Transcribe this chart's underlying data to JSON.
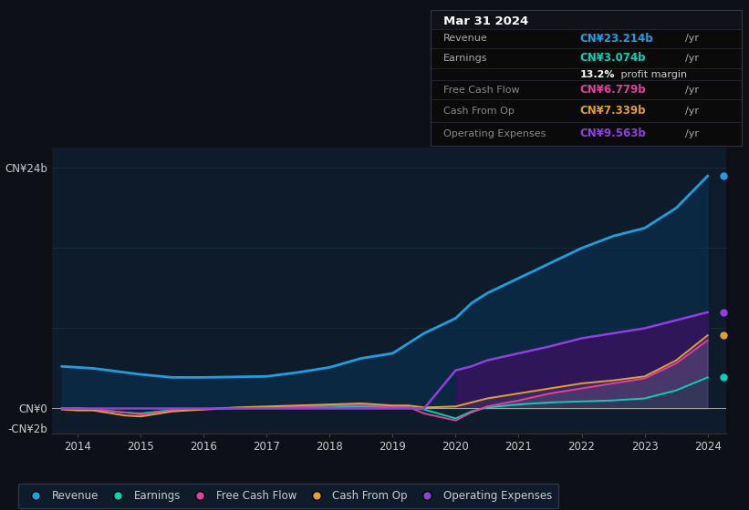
{
  "bg_color": "#0d1117",
  "plot_bg_color": "#0d1b2a",
  "grid_color": "#1e3344",
  "years": [
    2013.75,
    2014.0,
    2014.25,
    2014.75,
    2015.0,
    2015.5,
    2016.0,
    2016.5,
    2017.0,
    2017.5,
    2018.0,
    2018.5,
    2019.0,
    2019.25,
    2019.5,
    2020.0,
    2020.25,
    2020.5,
    2021.0,
    2021.5,
    2022.0,
    2022.5,
    2023.0,
    2023.5,
    2024.0
  ],
  "revenue": [
    4.2,
    4.1,
    4.0,
    3.6,
    3.4,
    3.1,
    3.1,
    3.15,
    3.2,
    3.6,
    4.1,
    5.0,
    5.5,
    6.5,
    7.5,
    9.0,
    10.5,
    11.5,
    13.0,
    14.5,
    16.0,
    17.2,
    18.0,
    20.0,
    23.2
  ],
  "earnings": [
    0.0,
    0.05,
    -0.1,
    -0.4,
    -0.5,
    -0.15,
    -0.05,
    0.05,
    0.1,
    0.15,
    0.1,
    0.2,
    0.1,
    0.1,
    -0.1,
    -1.0,
    -0.3,
    0.1,
    0.4,
    0.6,
    0.7,
    0.8,
    1.0,
    1.8,
    3.1
  ],
  "free_cash_flow": [
    0.05,
    0.0,
    -0.1,
    -0.4,
    -0.6,
    -0.2,
    -0.1,
    0.0,
    0.1,
    0.2,
    0.3,
    0.3,
    0.2,
    0.15,
    -0.5,
    -1.2,
    -0.4,
    0.2,
    0.8,
    1.5,
    2.0,
    2.5,
    3.0,
    4.5,
    6.8
  ],
  "cash_from_op": [
    -0.1,
    -0.2,
    -0.2,
    -0.7,
    -0.8,
    -0.3,
    -0.1,
    0.1,
    0.2,
    0.3,
    0.4,
    0.5,
    0.3,
    0.3,
    0.1,
    0.2,
    0.6,
    1.0,
    1.5,
    2.0,
    2.5,
    2.8,
    3.2,
    4.8,
    7.3
  ],
  "op_expenses": [
    0.0,
    0.0,
    0.0,
    0.0,
    0.0,
    0.0,
    0.0,
    0.0,
    0.0,
    0.0,
    0.0,
    0.0,
    0.0,
    0.0,
    0.0,
    3.8,
    4.2,
    4.8,
    5.5,
    6.2,
    7.0,
    7.5,
    8.0,
    8.8,
    9.6
  ],
  "rev_color": "#1ea0e0",
  "earn_color": "#00d4b8",
  "fcf_color": "#e040a0",
  "cfop_color": "#e0a030",
  "opex_color": "#9040e0",
  "rev_fill": "#0a3050",
  "opex_fill": "#3a1060",
  "earn_fill": "#003830",
  "ylim": [
    -2.5,
    26.0
  ],
  "xlim": [
    2013.6,
    2024.3
  ],
  "ytick_positions": [
    -2,
    0,
    24
  ],
  "ytick_labels": [
    "-CN¥2b",
    "CN¥0",
    "CN¥24b"
  ],
  "xtick_positions": [
    2014,
    2015,
    2016,
    2017,
    2018,
    2019,
    2020,
    2021,
    2022,
    2023,
    2024
  ],
  "legend_items": [
    {
      "label": "Revenue",
      "color": "#1ea0e0"
    },
    {
      "label": "Earnings",
      "color": "#00d4b8"
    },
    {
      "label": "Free Cash Flow",
      "color": "#e040a0"
    },
    {
      "label": "Cash From Op",
      "color": "#e0a030"
    },
    {
      "label": "Operating Expenses",
      "color": "#9040e0"
    }
  ],
  "infobox": {
    "date": "Mar 31 2024",
    "rows": [
      {
        "label": "Revenue",
        "value": "CN¥23.214b",
        "unit": "/yr",
        "value_color": "#1ea0e0",
        "label_color": "#aaaaaa"
      },
      {
        "label": "Earnings",
        "value": "CN¥3.074b",
        "unit": "/yr",
        "value_color": "#00d4b8",
        "label_color": "#aaaaaa"
      },
      {
        "label": "",
        "value": "13.2%",
        "unit": " profit margin",
        "value_color": "#ffffff",
        "label_color": "#aaaaaa",
        "bold_value": true
      },
      {
        "label": "Free Cash Flow",
        "value": "CN¥6.779b",
        "unit": "/yr",
        "value_color": "#e040a0",
        "label_color": "#888888"
      },
      {
        "label": "Cash From Op",
        "value": "CN¥7.339b",
        "unit": "/yr",
        "value_color": "#e0a030",
        "label_color": "#888888"
      },
      {
        "label": "Operating Expenses",
        "value": "CN¥9.563b",
        "unit": "/yr",
        "value_color": "#9040e0",
        "label_color": "#888888"
      }
    ]
  }
}
